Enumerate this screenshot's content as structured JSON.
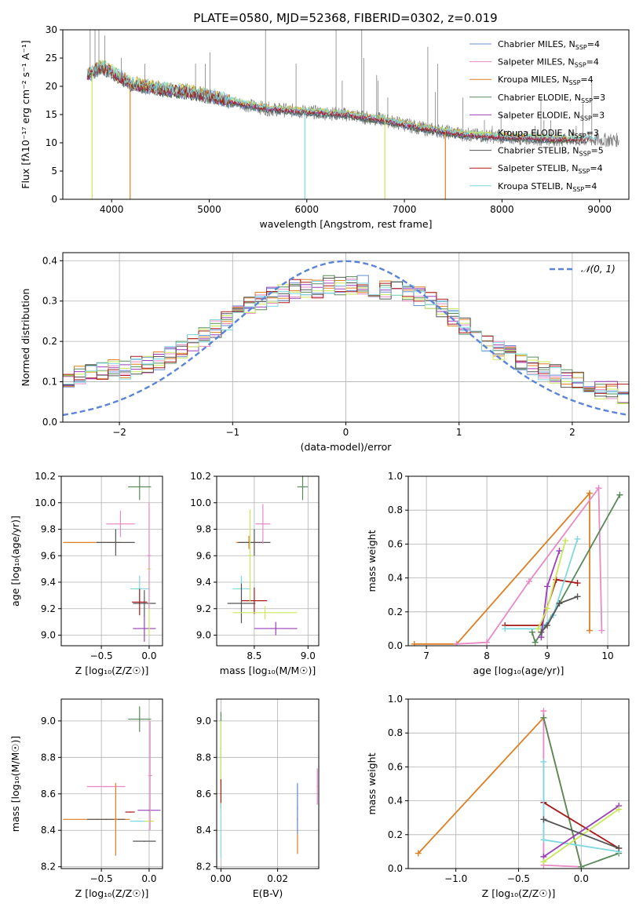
{
  "figure": {
    "title": "PLATE=0580, MJD=52368, FIBERID=0302, z=0.019"
  },
  "colors": {
    "chabrier_miles": "#6a8fd4",
    "salpeter_miles": "#e88ac6",
    "kroupa_miles": "#dd7f22",
    "chabrier_elodie": "#5a8a5a",
    "salpeter_elodie": "#9a3fb8",
    "kroupa_elodie": "#c9e85a",
    "chabrier_stelib": "#555555",
    "salpeter_stelib": "#aa1a1a",
    "kroupa_stelib": "#7fd8e0",
    "observed": "#808080",
    "normal": "#5b84d6"
  },
  "chart_data": [
    {
      "type": "line",
      "panel": "spectrum",
      "xlabel": "wavelength [Angstrom, rest frame]",
      "ylabel": "Flux [fλ10⁻¹⁷ erg cm⁻² s⁻¹ A⁻¹]",
      "xlim": [
        3500,
        9300
      ],
      "ylim": [
        0,
        30
      ],
      "xticks": [
        4000,
        5000,
        6000,
        7000,
        8000,
        9000
      ],
      "yticks": [
        0,
        5,
        10,
        15,
        20,
        25,
        30
      ],
      "grid": false,
      "legend_position": "top-right",
      "legend": [
        {
          "text": "Chabrier MILES, N",
          "sub": "SSP",
          "suffix": "=4",
          "color_key": "chabrier_miles"
        },
        {
          "text": "Salpeter MILES, N",
          "sub": "SSP",
          "suffix": "=4",
          "color_key": "salpeter_miles"
        },
        {
          "text": "Kroupa MILES, N",
          "sub": "SSP",
          "suffix": "=4",
          "color_key": "kroupa_miles"
        },
        {
          "text": "Chabrier ELODIE, N",
          "sub": "SSP",
          "suffix": "=3",
          "color_key": "chabrier_elodie"
        },
        {
          "text": "Salpeter ELODIE, N",
          "sub": "SSP",
          "suffix": "=3",
          "color_key": "salpeter_elodie"
        },
        {
          "text": "Kroupa ELODIE, N",
          "sub": "SSP",
          "suffix": "=3",
          "color_key": "kroupa_elodie"
        },
        {
          "text": "Chabrier STELIB, N",
          "sub": "SSP",
          "suffix": "=5",
          "color_key": "chabrier_stelib"
        },
        {
          "text": "Salpeter STELIB, N",
          "sub": "SSP",
          "suffix": "=4",
          "color_key": "salpeter_stelib"
        },
        {
          "text": "Kroupa STELIB, N",
          "sub": "SSP",
          "suffix": "=4",
          "color_key": "kroupa_stelib"
        }
      ],
      "continuum": {
        "x": [
          3750,
          3900,
          4000,
          4200,
          4500,
          4800,
          5000,
          5300,
          5600,
          6000,
          6400,
          6800,
          7200,
          7600,
          8000,
          8500,
          9000,
          9200
        ],
        "y": [
          22,
          23.5,
          22.5,
          20.5,
          19.5,
          19,
          18.3,
          17,
          16,
          15.5,
          15,
          14,
          12.5,
          11.5,
          11,
          10.7,
          10.5,
          10.5
        ]
      },
      "observed_spikes": [
        {
          "x": 3780,
          "y": 30
        },
        {
          "x": 3830,
          "y": 30
        },
        {
          "x": 3870,
          "y": 30
        },
        {
          "x": 3930,
          "y": 29
        },
        {
          "x": 4100,
          "y": 25
        },
        {
          "x": 4340,
          "y": 24
        },
        {
          "x": 4860,
          "y": 24
        },
        {
          "x": 4960,
          "y": 24
        },
        {
          "x": 5007,
          "y": 26
        },
        {
          "x": 5200,
          "y": 17
        },
        {
          "x": 5577,
          "y": 30
        },
        {
          "x": 5890,
          "y": 24
        },
        {
          "x": 6300,
          "y": 30
        },
        {
          "x": 6363,
          "y": 21
        },
        {
          "x": 6563,
          "y": 30
        },
        {
          "x": 6583,
          "y": 25
        },
        {
          "x": 6716,
          "y": 22
        },
        {
          "x": 6731,
          "y": 21
        },
        {
          "x": 6830,
          "y": 18
        },
        {
          "x": 7240,
          "y": 27
        },
        {
          "x": 7316,
          "y": 19
        },
        {
          "x": 7340,
          "y": 24
        },
        {
          "x": 7600,
          "y": 18
        },
        {
          "x": 7820,
          "y": 14
        },
        {
          "x": 7900,
          "y": 13
        },
        {
          "x": 7990,
          "y": 15
        },
        {
          "x": 8340,
          "y": 13
        },
        {
          "x": 8399,
          "y": 18
        },
        {
          "x": 8430,
          "y": 14
        },
        {
          "x": 8500,
          "y": 14
        },
        {
          "x": 8760,
          "y": 13
        },
        {
          "x": 8830,
          "y": 17
        },
        {
          "x": 8920,
          "y": 21
        }
      ],
      "model_dips": [
        {
          "x": 3800,
          "y": 0,
          "color_key": "kroupa_elodie"
        },
        {
          "x": 4190,
          "y": 0,
          "color_key": "kroupa_miles"
        },
        {
          "x": 5980,
          "y": 0,
          "color_key": "kroupa_stelib"
        },
        {
          "x": 6800,
          "y": 0,
          "color_key": "kroupa_elodie"
        },
        {
          "x": 7420,
          "y": 0,
          "color_key": "kroupa_miles"
        }
      ]
    },
    {
      "type": "bar",
      "panel": "residuals",
      "xlabel": "(data-model)/error",
      "ylabel": "Normed distribution",
      "xlim": [
        -2.5,
        2.5
      ],
      "ylim": [
        0,
        0.42
      ],
      "xticks": [
        -2,
        -1,
        0,
        1,
        2
      ],
      "yticks": [
        0.0,
        0.1,
        0.2,
        0.3,
        0.4
      ],
      "grid": true,
      "legend_position": "top-right",
      "legend": [
        {
          "text": "𝒩(0, 1)",
          "color_key": "normal"
        }
      ],
      "bin_width": 0.1,
      "bin_start": -2.5,
      "histogram_base": [
        0.1,
        0.12,
        0.12,
        0.13,
        0.13,
        0.13,
        0.14,
        0.14,
        0.15,
        0.17,
        0.18,
        0.2,
        0.21,
        0.23,
        0.25,
        0.27,
        0.29,
        0.3,
        0.31,
        0.32,
        0.33,
        0.33,
        0.33,
        0.34,
        0.34,
        0.34,
        0.34,
        0.33,
        0.33,
        0.33,
        0.32,
        0.31,
        0.3,
        0.28,
        0.26,
        0.24,
        0.22,
        0.2,
        0.18,
        0.17,
        0.15,
        0.14,
        0.13,
        0.12,
        0.11,
        0.1,
        0.09,
        0.08,
        0.08,
        0.07
      ]
    },
    {
      "type": "scatter",
      "panel": "age-vs-z",
      "xlabel": "Z [log₁₀(Z/Z☉)]",
      "ylabel": "age  [log₁₀(age/yr)]",
      "xlim": [
        -0.92,
        0.14
      ],
      "ylim": [
        8.92,
        10.2
      ],
      "xticks": [
        -0.5,
        0.0
      ],
      "yticks": [
        9.0,
        9.2,
        9.4,
        9.6,
        9.8,
        10.0,
        10.2
      ],
      "grid": true,
      "points": [
        {
          "x": -0.6,
          "y": 9.7,
          "xerr": 0.3,
          "yerr": 0.0,
          "color_key": "kroupa_miles"
        },
        {
          "x": -0.35,
          "y": 9.7,
          "xerr": 0.2,
          "yerr": 0.1,
          "color_key": "chabrier_stelib"
        },
        {
          "x": -0.3,
          "y": 9.84,
          "xerr": 0.15,
          "yerr": 0.1,
          "color_key": "salpeter_miles"
        },
        {
          "x": -0.1,
          "y": 10.12,
          "xerr": 0.12,
          "yerr": 0.1,
          "color_key": "chabrier_elodie"
        },
        {
          "x": -0.1,
          "y": 9.35,
          "xerr": 0.1,
          "yerr": 0.1,
          "color_key": "kroupa_stelib"
        },
        {
          "x": -0.05,
          "y": 9.24,
          "xerr": 0.12,
          "yerr": 0.1,
          "color_key": "chabrier_stelib"
        },
        {
          "x": -0.1,
          "y": 9.25,
          "xerr": 0.08,
          "yerr": 0.1,
          "color_key": "salpeter_stelib"
        },
        {
          "x": -0.05,
          "y": 9.05,
          "xerr": 0.12,
          "yerr": 0.1,
          "color_key": "salpeter_elodie"
        },
        {
          "x": 0.0,
          "y": 9.5,
          "xerr": 0.02,
          "yerr": 0.5,
          "color_key": "kroupa_elodie"
        },
        {
          "x": 0.0,
          "y": 9.6,
          "xerr": 0.02,
          "yerr": 0.4,
          "color_key": "salpeter_miles"
        }
      ]
    },
    {
      "type": "scatter",
      "panel": "age-vs-mass",
      "xlabel": "mass [log₁₀(M/M☉)]",
      "ylabel": "",
      "xlim": [
        8.15,
        9.1
      ],
      "ylim": [
        8.92,
        10.2
      ],
      "xticks": [
        8.5,
        9.0
      ],
      "yticks": [
        9.0,
        9.2,
        9.4,
        9.6,
        9.8,
        10.0,
        10.2
      ],
      "grid": true,
      "points": [
        {
          "x": 8.45,
          "y": 9.7,
          "xerr": 0.12,
          "yerr": 0.05,
          "color_key": "kroupa_miles"
        },
        {
          "x": 8.5,
          "y": 9.7,
          "xerr": 0.15,
          "yerr": 0.1,
          "color_key": "chabrier_stelib"
        },
        {
          "x": 8.58,
          "y": 9.84,
          "xerr": 0.07,
          "yerr": 0.15,
          "color_key": "salpeter_miles"
        },
        {
          "x": 8.95,
          "y": 10.12,
          "xerr": 0.05,
          "yerr": 0.1,
          "color_key": "chabrier_elodie"
        },
        {
          "x": 8.38,
          "y": 9.35,
          "xerr": 0.08,
          "yerr": 0.1,
          "color_key": "kroupa_stelib"
        },
        {
          "x": 8.38,
          "y": 9.24,
          "xerr": 0.13,
          "yerr": 0.15,
          "color_key": "chabrier_stelib"
        },
        {
          "x": 8.5,
          "y": 9.26,
          "xerr": 0.12,
          "yerr": 0.1,
          "color_key": "salpeter_stelib"
        },
        {
          "x": 8.6,
          "y": 9.17,
          "xerr": 0.3,
          "yerr": 0.05,
          "color_key": "kroupa_elodie"
        },
        {
          "x": 8.7,
          "y": 9.05,
          "xerr": 0.2,
          "yerr": 0.05,
          "color_key": "salpeter_elodie"
        },
        {
          "x": 8.46,
          "y": 9.6,
          "xerr": 0.02,
          "yerr": 0.35,
          "color_key": "kroupa_elodie"
        }
      ]
    },
    {
      "type": "line",
      "panel": "mass-weight-vs-age",
      "xlabel": "age  [log₁₀(age/yr)]",
      "ylabel": "mass weight",
      "xlim": [
        6.7,
        10.35
      ],
      "ylim": [
        0,
        1.0
      ],
      "xticks": [
        7,
        8,
        9,
        10
      ],
      "yticks": [
        0.0,
        0.2,
        0.4,
        0.6,
        0.8,
        1.0
      ],
      "grid": true,
      "series": [
        {
          "color_key": "kroupa_miles",
          "x": [
            6.8,
            7.5,
            9.7,
            9.7
          ],
          "y": [
            0.01,
            0.01,
            0.9,
            0.09
          ]
        },
        {
          "color_key": "salpeter_miles",
          "x": [
            7.5,
            8.0,
            8.7,
            9.85,
            9.9
          ],
          "y": [
            0.01,
            0.02,
            0.38,
            0.93,
            0.09
          ]
        },
        {
          "color_key": "chabrier_elodie",
          "x": [
            8.75,
            8.8,
            9.2,
            10.2
          ],
          "y": [
            0.08,
            0.02,
            0.25,
            0.89
          ]
        },
        {
          "color_key": "salpeter_stelib",
          "x": [
            8.3,
            8.9,
            9.15,
            9.5
          ],
          "y": [
            0.12,
            0.12,
            0.39,
            0.37
          ]
        },
        {
          "color_key": "kroupa_stelib",
          "x": [
            8.3,
            8.9,
            9.1,
            9.5
          ],
          "y": [
            0.1,
            0.1,
            0.18,
            0.63
          ]
        },
        {
          "color_key": "salpeter_elodie",
          "x": [
            8.9,
            9.0,
            9.2
          ],
          "y": [
            0.05,
            0.35,
            0.56
          ]
        },
        {
          "color_key": "kroupa_elodie",
          "x": [
            8.85,
            9.0,
            9.3
          ],
          "y": [
            0.1,
            0.22,
            0.62
          ]
        },
        {
          "color_key": "chabrier_stelib",
          "x": [
            8.9,
            9.0,
            9.2,
            9.5
          ],
          "y": [
            0.08,
            0.12,
            0.25,
            0.29
          ]
        }
      ]
    },
    {
      "type": "scatter",
      "panel": "mass-vs-z",
      "xlabel": "Z [log₁₀(Z/Z☉)]",
      "ylabel": "mass [log₁₀(M/M☉)]",
      "xlim": [
        -0.92,
        0.14
      ],
      "ylim": [
        8.19,
        9.12
      ],
      "xticks": [
        -0.5,
        0.0
      ],
      "yticks": [
        8.2,
        8.4,
        8.6,
        8.8,
        9.0
      ],
      "grid": true,
      "points": [
        {
          "x": -0.55,
          "y": 8.46,
          "xerr": 0.35,
          "yerr": 0.0,
          "color_key": "kroupa_miles"
        },
        {
          "x": -0.45,
          "y": 8.46,
          "xerr": 0.2,
          "yerr": 0.0,
          "color_key": "chabrier_stelib"
        },
        {
          "x": -0.45,
          "y": 8.64,
          "xerr": 0.2,
          "yerr": 0.0,
          "color_key": "salpeter_miles"
        },
        {
          "x": -0.35,
          "y": 8.46,
          "xerr": 0.02,
          "yerr": 0.2,
          "color_key": "kroupa_miles"
        },
        {
          "x": -0.1,
          "y": 9.01,
          "xerr": 0.12,
          "yerr": 0.07,
          "color_key": "chabrier_elodie"
        },
        {
          "x": -0.1,
          "y": 8.45,
          "xerr": 0.1,
          "yerr": 0.0,
          "color_key": "kroupa_stelib"
        },
        {
          "x": -0.05,
          "y": 8.34,
          "xerr": 0.12,
          "yerr": 0.0,
          "color_key": "chabrier_stelib"
        },
        {
          "x": 0.0,
          "y": 8.51,
          "xerr": 0.12,
          "yerr": 0.0,
          "color_key": "salpeter_elodie"
        },
        {
          "x": 0.0,
          "y": 8.45,
          "xerr": 0.05,
          "yerr": 0.0,
          "color_key": "kroupa_elodie"
        },
        {
          "x": -0.2,
          "y": 8.5,
          "xerr": 0.05,
          "yerr": 0.0,
          "color_key": "salpeter_stelib"
        },
        {
          "x": 0.01,
          "y": 8.7,
          "xerr": 0.02,
          "yerr": 0.3,
          "color_key": "salpeter_miles"
        }
      ]
    },
    {
      "type": "scatter",
      "panel": "mass-vs-ebv",
      "xlabel": "E(B-V)",
      "ylabel": "",
      "xlim": [
        -0.0015,
        0.0345
      ],
      "ylim": [
        8.19,
        9.12
      ],
      "xticks": [
        0.0,
        0.02
      ],
      "yticks": [
        8.2,
        8.4,
        8.6,
        8.8,
        9.0
      ],
      "grid": true,
      "points": [
        {
          "x": 0.0,
          "y": 8.85,
          "xerr": 0.0,
          "yerr": 0.2,
          "color_key": "chabrier_elodie"
        },
        {
          "x": 0.0,
          "y": 8.75,
          "xerr": 0.0,
          "yerr": 0.25,
          "color_key": "kroupa_elodie"
        },
        {
          "x": 0.0,
          "y": 8.6,
          "xerr": 0.0,
          "yerr": 0.08,
          "color_key": "salpeter_stelib"
        },
        {
          "x": 0.0,
          "y": 8.4,
          "xerr": 0.0,
          "yerr": 0.15,
          "color_key": "kroupa_stelib"
        },
        {
          "x": 0.027,
          "y": 8.46,
          "xerr": 0.0,
          "yerr": 0.19,
          "color_key": "kroupa_miles"
        },
        {
          "x": 0.027,
          "y": 8.52,
          "xerr": 0.0,
          "yerr": 0.14,
          "color_key": "chabrier_miles"
        },
        {
          "x": 0.034,
          "y": 8.64,
          "xerr": 0.0,
          "yerr": 0.1,
          "color_key": "salpeter_miles"
        }
      ]
    },
    {
      "type": "line",
      "panel": "mass-weight-vs-z",
      "xlabel": "Z [log₁₀(Z/Z☉)]",
      "ylabel": "mass weight",
      "xlim": [
        -1.38,
        0.38
      ],
      "ylim": [
        0,
        1.0
      ],
      "xticks": [
        -1.0,
        -0.5,
        0.0
      ],
      "yticks": [
        0.0,
        0.2,
        0.4,
        0.6,
        0.8,
        1.0
      ],
      "grid": true,
      "series": [
        {
          "color_key": "kroupa_miles",
          "x": [
            -1.3,
            -0.3,
            0.0
          ],
          "y": [
            0.09,
            0.89,
            0.01
          ]
        },
        {
          "color_key": "salpeter_miles",
          "x": [
            -0.3,
            -0.3,
            0.0
          ],
          "y": [
            0.93,
            0.02,
            0.01
          ]
        },
        {
          "color_key": "chabrier_elodie",
          "x": [
            -0.3,
            0.0,
            0.3
          ],
          "y": [
            0.89,
            0.01,
            0.09
          ]
        },
        {
          "color_key": "salpeter_stelib",
          "x": [
            -0.3,
            0.3
          ],
          "y": [
            0.39,
            0.12
          ]
        },
        {
          "color_key": "kroupa_stelib",
          "x": [
            -0.3,
            -0.3,
            0.3
          ],
          "y": [
            0.63,
            0.17,
            0.1
          ]
        },
        {
          "color_key": "salpeter_elodie",
          "x": [
            -0.3,
            0.3
          ],
          "y": [
            0.07,
            0.37
          ]
        },
        {
          "color_key": "kroupa_elodie",
          "x": [
            -0.3,
            0.3
          ],
          "y": [
            0.04,
            0.35
          ]
        },
        {
          "color_key": "chabrier_stelib",
          "x": [
            -0.3,
            0.3
          ],
          "y": [
            0.29,
            0.12
          ]
        }
      ]
    }
  ]
}
